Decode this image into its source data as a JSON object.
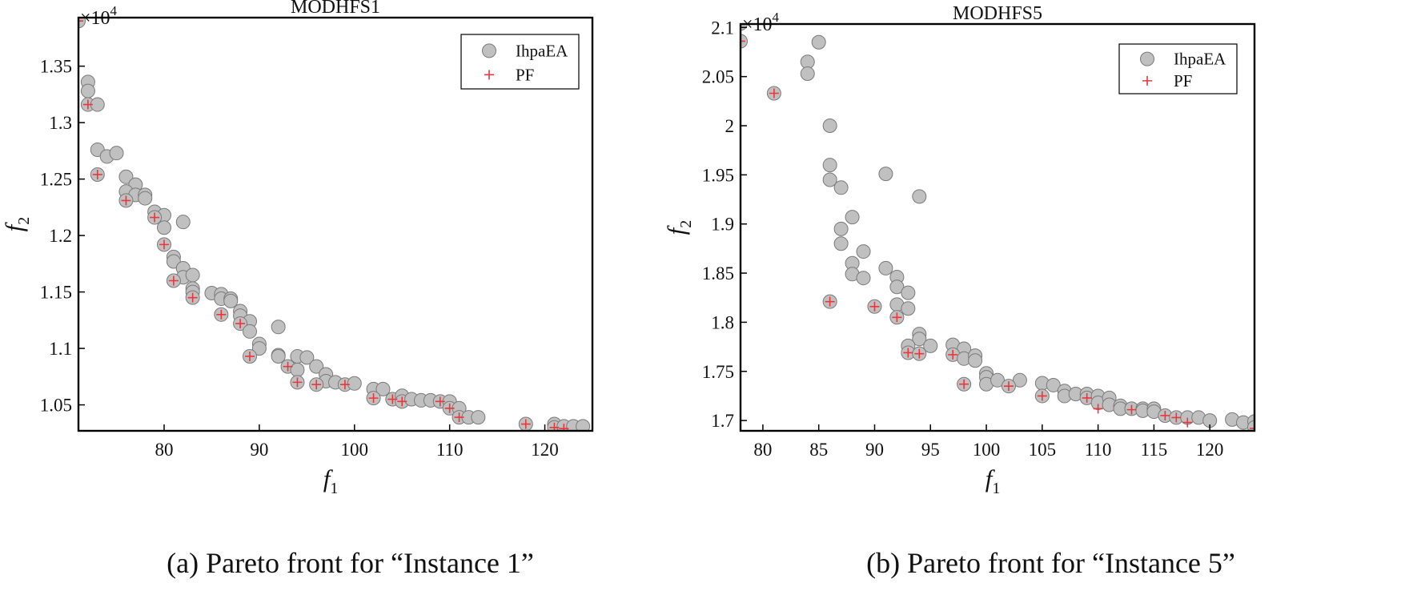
{
  "chart_data": [
    {
      "type": "scatter",
      "title": "MODHFS1",
      "xlabel": "f",
      "xlabel_sub": "1",
      "ylabel": "f",
      "ylabel_sub": "2",
      "y_multiplier": "×10",
      "y_multiplier_exp": "4",
      "xlim": [
        71,
        125
      ],
      "ylim": [
        1.027,
        1.393
      ],
      "xticks": [
        80,
        90,
        100,
        110,
        120
      ],
      "yticks": [
        1.05,
        1.1,
        1.15,
        1.2,
        1.25,
        1.3,
        1.35
      ],
      "ytick_labels": [
        "1.05",
        "1.1",
        "1.15",
        "1.2",
        "1.25",
        "1.3",
        "1.35"
      ],
      "legend": {
        "placement": "top-right",
        "entries": [
          "IhpaEA",
          "PF"
        ]
      },
      "caption": "(a)  Pareto front for “Instance 1”",
      "series": [
        {
          "name": "IhpaEA",
          "marker": "circle",
          "color": "#c0c0c0",
          "points": [
            [
              71,
              1.39
            ],
            [
              72,
              1.336
            ],
            [
              72,
              1.328
            ],
            [
              72,
              1.316
            ],
            [
              73,
              1.316
            ],
            [
              73,
              1.276
            ],
            [
              74,
              1.27
            ],
            [
              75,
              1.273
            ],
            [
              73,
              1.254
            ],
            [
              76,
              1.252
            ],
            [
              77,
              1.245
            ],
            [
              76,
              1.239
            ],
            [
              77,
              1.236
            ],
            [
              78,
              1.236
            ],
            [
              78,
              1.233
            ],
            [
              76,
              1.231
            ],
            [
              79,
              1.221
            ],
            [
              80,
              1.218
            ],
            [
              79,
              1.216
            ],
            [
              80,
              1.207
            ],
            [
              82,
              1.212
            ],
            [
              80,
              1.192
            ],
            [
              81,
              1.181
            ],
            [
              81,
              1.177
            ],
            [
              82,
              1.171
            ],
            [
              82,
              1.163
            ],
            [
              83,
              1.165
            ],
            [
              81,
              1.16
            ],
            [
              83,
              1.153
            ],
            [
              83,
              1.15
            ],
            [
              83,
              1.145
            ],
            [
              85,
              1.149
            ],
            [
              86,
              1.148
            ],
            [
              86,
              1.144
            ],
            [
              87,
              1.144
            ],
            [
              87,
              1.142
            ],
            [
              88,
              1.133
            ],
            [
              86,
              1.13
            ],
            [
              88,
              1.129
            ],
            [
              89,
              1.124
            ],
            [
              88,
              1.122
            ],
            [
              89,
              1.115
            ],
            [
              92,
              1.119
            ],
            [
              90,
              1.104
            ],
            [
              90,
              1.1
            ],
            [
              92,
              1.094
            ],
            [
              92,
              1.093
            ],
            [
              89,
              1.093
            ],
            [
              94,
              1.093
            ],
            [
              95,
              1.092
            ],
            [
              93,
              1.084
            ],
            [
              94,
              1.081
            ],
            [
              96,
              1.084
            ],
            [
              97,
              1.077
            ],
            [
              97,
              1.071
            ],
            [
              98,
              1.07
            ],
            [
              94,
              1.07
            ],
            [
              96,
              1.068
            ],
            [
              99,
              1.068
            ],
            [
              100,
              1.069
            ],
            [
              102,
              1.064
            ],
            [
              103,
              1.064
            ],
            [
              102,
              1.056
            ],
            [
              104,
              1.055
            ],
            [
              105,
              1.058
            ],
            [
              105,
              1.053
            ],
            [
              106,
              1.055
            ],
            [
              107,
              1.054
            ],
            [
              108,
              1.054
            ],
            [
              109,
              1.053
            ],
            [
              110,
              1.053
            ],
            [
              110,
              1.047
            ],
            [
              111,
              1.047
            ],
            [
              111,
              1.039
            ],
            [
              112,
              1.039
            ],
            [
              113,
              1.039
            ],
            [
              118,
              1.033
            ],
            [
              121,
              1.033
            ],
            [
              121,
              1.03
            ],
            [
              122,
              1.03
            ],
            [
              122,
              1.031
            ],
            [
              123,
              1.031
            ],
            [
              124,
              1.031
            ]
          ]
        },
        {
          "name": "PF",
          "marker": "plus",
          "color": "#e8383d",
          "points": [
            [
              71,
              1.39
            ],
            [
              72,
              1.316
            ],
            [
              73,
              1.254
            ],
            [
              76,
              1.231
            ],
            [
              79,
              1.216
            ],
            [
              80,
              1.192
            ],
            [
              81,
              1.16
            ],
            [
              83,
              1.145
            ],
            [
              86,
              1.13
            ],
            [
              88,
              1.122
            ],
            [
              89,
              1.093
            ],
            [
              93,
              1.084
            ],
            [
              94,
              1.07
            ],
            [
              96,
              1.068
            ],
            [
              99,
              1.068
            ],
            [
              102,
              1.056
            ],
            [
              104,
              1.055
            ],
            [
              105,
              1.053
            ],
            [
              109,
              1.053
            ],
            [
              110,
              1.047
            ],
            [
              111,
              1.039
            ],
            [
              118,
              1.033
            ],
            [
              121,
              1.03
            ],
            [
              122,
              1.029
            ]
          ]
        }
      ]
    },
    {
      "type": "scatter",
      "title": "MODHFS5",
      "xlabel": "f",
      "xlabel_sub": "1",
      "ylabel": "f",
      "ylabel_sub": "2",
      "y_multiplier": "×10",
      "y_multiplier_exp": "4",
      "xlim": [
        78,
        124
      ],
      "ylim": [
        1.6895,
        2.1035
      ],
      "xticks": [
        80,
        85,
        90,
        95,
        100,
        105,
        110,
        115,
        120
      ],
      "yticks": [
        1.7,
        1.75,
        1.8,
        1.85,
        1.9,
        1.95,
        2.0,
        2.05,
        2.1
      ],
      "ytick_labels": [
        "1.7",
        "1.75",
        "1.8",
        "1.85",
        "1.9",
        "1.95",
        "2",
        "2.05",
        "2.1"
      ],
      "legend": {
        "placement": "top-right",
        "entries": [
          "IhpaEA",
          "PF"
        ]
      },
      "caption": "(b) Pareto front for “Instance 5”",
      "series": [
        {
          "name": "IhpaEA",
          "marker": "circle",
          "color": "#c0c0c0",
          "points": [
            [
              78,
              2.104
            ],
            [
              78,
              2.086
            ],
            [
              81,
              2.033
            ],
            [
              84,
              2.065
            ],
            [
              84,
              2.053
            ],
            [
              85,
              2.085
            ],
            [
              86,
              2.0
            ],
            [
              86,
              1.96
            ],
            [
              86,
              1.945
            ],
            [
              87,
              1.937
            ],
            [
              88,
              1.907
            ],
            [
              87,
              1.895
            ],
            [
              87,
              1.88
            ],
            [
              89,
              1.872
            ],
            [
              88,
              1.86
            ],
            [
              88,
              1.849
            ],
            [
              89,
              1.845
            ],
            [
              91,
              1.951
            ],
            [
              91,
              1.855
            ],
            [
              92,
              1.846
            ],
            [
              92,
              1.836
            ],
            [
              93,
              1.83
            ],
            [
              92,
              1.818
            ],
            [
              93,
              1.814
            ],
            [
              92,
              1.805
            ],
            [
              94,
              1.928
            ],
            [
              94,
              1.788
            ],
            [
              94,
              1.783
            ],
            [
              93,
              1.776
            ],
            [
              95,
              1.776
            ],
            [
              93,
              1.769
            ],
            [
              94,
              1.768
            ],
            [
              86,
              1.821
            ],
            [
              90,
              1.816
            ],
            [
              97,
              1.777
            ],
            [
              98,
              1.773
            ],
            [
              97,
              1.767
            ],
            [
              98,
              1.763
            ],
            [
              99,
              1.766
            ],
            [
              99,
              1.761
            ],
            [
              100,
              1.748
            ],
            [
              100,
              1.744
            ],
            [
              100,
              1.737
            ],
            [
              101,
              1.741
            ],
            [
              103,
              1.741
            ],
            [
              102,
              1.735
            ],
            [
              98,
              1.737
            ],
            [
              105,
              1.738
            ],
            [
              106,
              1.736
            ],
            [
              107,
              1.73
            ],
            [
              107,
              1.725
            ],
            [
              108,
              1.727
            ],
            [
              105,
              1.725
            ],
            [
              109,
              1.727
            ],
            [
              109,
              1.723
            ],
            [
              110,
              1.725
            ],
            [
              110,
              1.718
            ],
            [
              111,
              1.723
            ],
            [
              111,
              1.716
            ],
            [
              112,
              1.715
            ],
            [
              112,
              1.712
            ],
            [
              113,
              1.712
            ],
            [
              114,
              1.712
            ],
            [
              114,
              1.71
            ],
            [
              115,
              1.712
            ],
            [
              115,
              1.709
            ],
            [
              116,
              1.705
            ],
            [
              117,
              1.703
            ],
            [
              118,
              1.703
            ],
            [
              119,
              1.703
            ],
            [
              120,
              1.7
            ],
            [
              122,
              1.701
            ],
            [
              123,
              1.698
            ],
            [
              124,
              1.699
            ],
            [
              124,
              1.693
            ]
          ]
        },
        {
          "name": "PF",
          "marker": "plus",
          "color": "#e8383d",
          "points": [
            [
              78,
              2.086
            ],
            [
              81,
              2.033
            ],
            [
              86,
              1.821
            ],
            [
              90,
              1.816
            ],
            [
              92,
              1.805
            ],
            [
              93,
              1.769
            ],
            [
              94,
              1.768
            ],
            [
              97,
              1.767
            ],
            [
              98,
              1.737
            ],
            [
              102,
              1.735
            ],
            [
              105,
              1.725
            ],
            [
              109,
              1.723
            ],
            [
              110,
              1.712
            ],
            [
              113,
              1.711
            ],
            [
              116,
              1.705
            ],
            [
              117,
              1.703
            ],
            [
              118,
              1.698
            ],
            [
              124,
              1.692
            ]
          ]
        }
      ]
    }
  ]
}
